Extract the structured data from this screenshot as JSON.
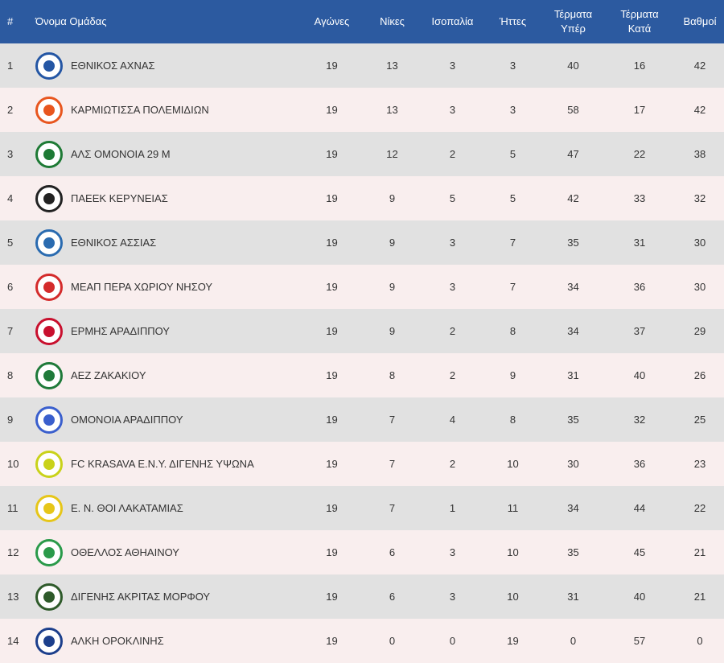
{
  "header": {
    "pos": "#",
    "team": "Όνομα Ομάδας",
    "played": "Αγώνες",
    "wins": "Νίκες",
    "draws": "Ισοπαλία",
    "losses": "Ήττες",
    "goals_for_line1": "Τέρματα",
    "goals_for_line2": "Υπέρ",
    "goals_against_line1": "Τέρματα",
    "goals_against_line2": "Κατά",
    "points": "Βαθμοί"
  },
  "rows": [
    {
      "pos": "1",
      "name": "ΕΘΝΙΚΟΣ ΑΧΝΑΣ",
      "played": "19",
      "wins": "13",
      "draws": "3",
      "losses": "3",
      "gf": "40",
      "ga": "16",
      "pts": "42",
      "logo": "ethnikos-achnas-crest",
      "logo_color": "#2456a4"
    },
    {
      "pos": "2",
      "name": "ΚΑΡΜΙΩΤΙΣΣΑ ΠΟΛΕΜΙΔΙΩΝ",
      "played": "19",
      "wins": "13",
      "draws": "3",
      "losses": "3",
      "gf": "58",
      "ga": "17",
      "pts": "42",
      "logo": "karmiotissa-crest",
      "logo_color": "#e8561f"
    },
    {
      "pos": "3",
      "name": "ΑΛΣ ΟΜΟΝΟΙΑ 29 Μ",
      "played": "19",
      "wins": "12",
      "draws": "2",
      "losses": "5",
      "gf": "47",
      "ga": "22",
      "pts": "38",
      "logo": "omonoia-29m-crest",
      "logo_color": "#1e7a35"
    },
    {
      "pos": "4",
      "name": "ΠΑΕΕΚ ΚΕΡΥΝΕΙΑΣ",
      "played": "19",
      "wins": "9",
      "draws": "5",
      "losses": "5",
      "gf": "42",
      "ga": "33",
      "pts": "32",
      "logo": "paeek-crest",
      "logo_color": "#222222"
    },
    {
      "pos": "5",
      "name": "ΕΘΝΙΚΟΣ ΑΣΣΙΑΣ",
      "played": "19",
      "wins": "9",
      "draws": "3",
      "losses": "7",
      "gf": "35",
      "ga": "31",
      "pts": "30",
      "logo": "ethnikos-assias-crest",
      "logo_color": "#2a6bb0"
    },
    {
      "pos": "6",
      "name": "ΜΕΑΠ ΠΕΡΑ ΧΩΡΙΟΥ ΝΗΣΟΥ",
      "played": "19",
      "wins": "9",
      "draws": "3",
      "losses": "7",
      "gf": "34",
      "ga": "36",
      "pts": "30",
      "logo": "meap-crest",
      "logo_color": "#d42b2b"
    },
    {
      "pos": "7",
      "name": "ΕΡΜΗΣ ΑΡΑΔΙΠΠΟΥ",
      "played": "19",
      "wins": "9",
      "draws": "2",
      "losses": "8",
      "gf": "34",
      "ga": "37",
      "pts": "29",
      "logo": "ermis-crest",
      "logo_color": "#c8102e"
    },
    {
      "pos": "8",
      "name": "ΑΕΖ ΖΑΚΑΚΙΟΥ",
      "played": "19",
      "wins": "8",
      "draws": "2",
      "losses": "9",
      "gf": "31",
      "ga": "40",
      "pts": "26",
      "logo": "aez-crest",
      "logo_color": "#1f7a3a"
    },
    {
      "pos": "9",
      "name": "ΟΜΟΝΟΙΑ ΑΡΑΔΙΠΠΟΥ",
      "played": "19",
      "wins": "7",
      "draws": "4",
      "losses": "8",
      "gf": "35",
      "ga": "32",
      "pts": "25",
      "logo": "omonoia-aradippou-crest",
      "logo_color": "#3a5fcd"
    },
    {
      "pos": "10",
      "name": "FC KRASAVA Ε.Ν.Υ. ΔΙΓΕΝΗΣ ΥΨΩΝΑ",
      "played": "19",
      "wins": "7",
      "draws": "2",
      "losses": "10",
      "gf": "30",
      "ga": "36",
      "pts": "23",
      "logo": "krasava-crest",
      "logo_color": "#c9d21a"
    },
    {
      "pos": "11",
      "name": "Ε. Ν. ΘΟΙ ΛΑΚΑΤΑΜΙΑΣ",
      "played": "19",
      "wins": "7",
      "draws": "1",
      "losses": "11",
      "gf": "34",
      "ga": "44",
      "pts": "22",
      "logo": "thoi-crest",
      "logo_color": "#e6c619"
    },
    {
      "pos": "12",
      "name": "ΟΘΕΛΛΟΣ ΑΘΗΑΙΝΟΥ",
      "played": "19",
      "wins": "6",
      "draws": "3",
      "losses": "10",
      "gf": "35",
      "ga": "45",
      "pts": "21",
      "logo": "othellos-crest",
      "logo_color": "#2a9a4a"
    },
    {
      "pos": "13",
      "name": "ΔΙΓΕΝΗΣ ΑΚΡΙΤΑΣ ΜΟΡΦΟΥ",
      "played": "19",
      "wins": "6",
      "draws": "3",
      "losses": "10",
      "gf": "31",
      "ga": "40",
      "pts": "21",
      "logo": "digenis-morfou-crest",
      "logo_color": "#2e5a2a"
    },
    {
      "pos": "14",
      "name": "ΑΛΚΗ ΟΡΟΚΛΙΝΗΣ",
      "played": "19",
      "wins": "0",
      "draws": "0",
      "losses": "19",
      "gf": "0",
      "ga": "57",
      "pts": "0",
      "logo": "alki-crest",
      "logo_color": "#1c3f8c"
    }
  ]
}
